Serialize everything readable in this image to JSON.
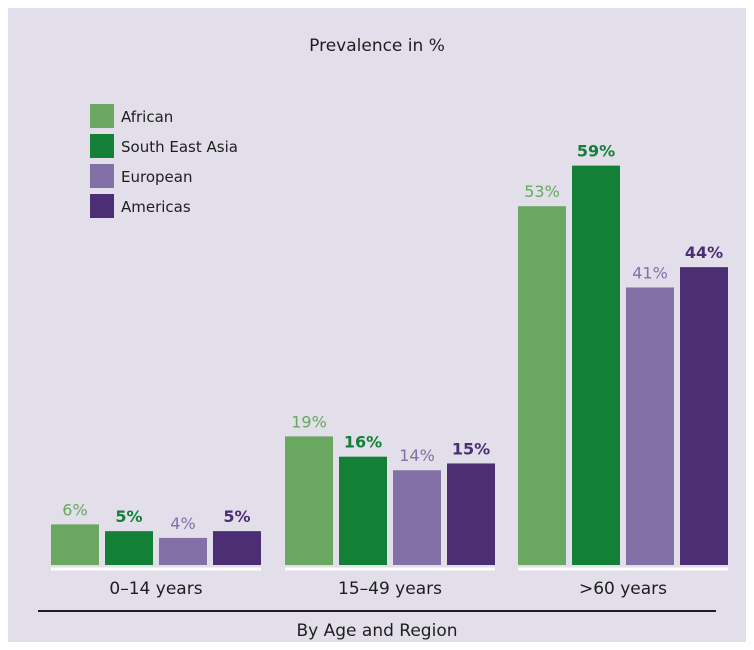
{
  "chart_data": {
    "type": "bar",
    "title": "Prevalence in %",
    "xlabel": "By Age and Region",
    "ylabel": "",
    "categories": [
      "0–14 years",
      "15–49 years",
      ">60 years"
    ],
    "series": [
      {
        "name": "African",
        "values": [
          6,
          19,
          53
        ],
        "labels": [
          "6%",
          "19%",
          "53%"
        ],
        "color": "#6aa862",
        "label_color": "#6aa862"
      },
      {
        "name": "South East Asia",
        "values": [
          5,
          16,
          59
        ],
        "labels": [
          "5%",
          "16%",
          "59%"
        ],
        "color": "#137f37",
        "label_color": "#137f37"
      },
      {
        "name": "European",
        "values": [
          4,
          14,
          41
        ],
        "labels": [
          "4%",
          "14%",
          "41%"
        ],
        "color": "#8270a7",
        "label_color": "#8270a7"
      },
      {
        "name": "Americas",
        "values": [
          5,
          15,
          44
        ],
        "labels": [
          "5%",
          "15%",
          "44%"
        ],
        "color": "#4b2e74",
        "label_color": "#4b2e74"
      }
    ],
    "ylim": [
      0,
      65
    ],
    "legend_position": "top-left",
    "grid": false
  },
  "colors": {
    "panel_background": "#e2deea",
    "baseline": "#ffffff",
    "axis_rule": "#1e1e1e",
    "text": "#1e1e1e"
  }
}
